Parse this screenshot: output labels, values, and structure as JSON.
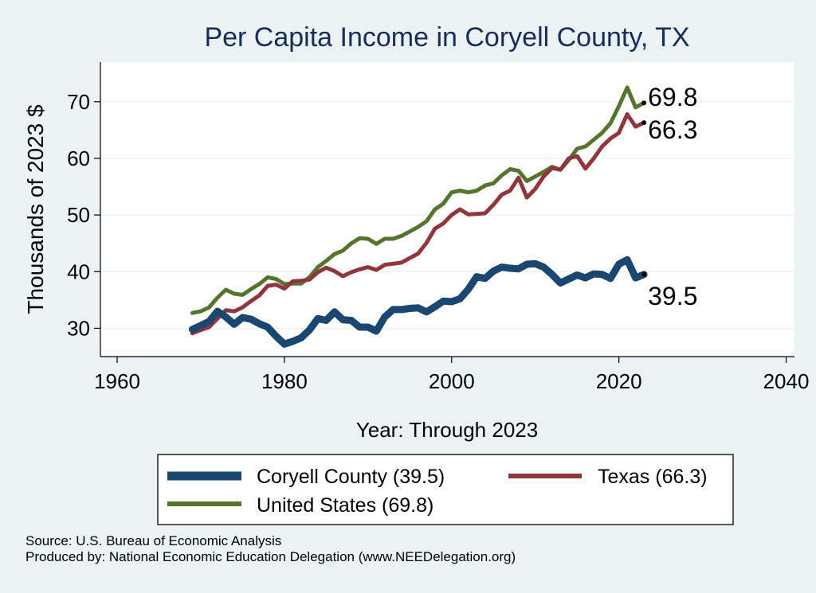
{
  "chart_data": {
    "type": "line",
    "title": "Per Capita Income in Coryell County, TX",
    "xlabel": "Year: Through 2023",
    "ylabel": "Thousands of 2023 $",
    "xlim": [
      1958,
      2041
    ],
    "ylim": [
      25,
      77
    ],
    "x_ticks": [
      1960,
      1980,
      2000,
      2020,
      2040
    ],
    "y_ticks": [
      30,
      40,
      50,
      60,
      70
    ],
    "grid": "horizontal",
    "years": [
      1969,
      1970,
      1971,
      1972,
      1973,
      1974,
      1975,
      1976,
      1977,
      1978,
      1979,
      1980,
      1981,
      1982,
      1983,
      1984,
      1985,
      1986,
      1987,
      1988,
      1989,
      1990,
      1991,
      1992,
      1993,
      1994,
      1995,
      1996,
      1997,
      1998,
      1999,
      2000,
      2001,
      2002,
      2003,
      2004,
      2005,
      2006,
      2007,
      2008,
      2009,
      2010,
      2011,
      2012,
      2013,
      2014,
      2015,
      2016,
      2017,
      2018,
      2019,
      2020,
      2021,
      2022,
      2023
    ],
    "series": [
      {
        "name": "Coryell County",
        "legend_label": "Coryell County (39.5)",
        "color": "#1a476f",
        "end_label": "39.5",
        "values": [
          29.8,
          30.5,
          31.2,
          33.0,
          32.0,
          30.7,
          31.9,
          31.6,
          30.8,
          30.2,
          28.6,
          27.2,
          27.7,
          28.3,
          29.7,
          31.7,
          31.4,
          32.9,
          31.5,
          31.4,
          30.2,
          30.2,
          29.5,
          32.0,
          33.3,
          33.3,
          33.5,
          33.6,
          32.9,
          33.8,
          34.8,
          34.7,
          35.2,
          36.9,
          39.1,
          38.8,
          40.1,
          40.8,
          40.6,
          40.5,
          41.3,
          41.4,
          40.8,
          39.5,
          38.0,
          38.7,
          39.4,
          38.9,
          39.6,
          39.5,
          38.8,
          41.3,
          42.1,
          38.9,
          39.5
        ]
      },
      {
        "name": "Texas",
        "legend_label": "Texas (66.3)",
        "color": "#90353b",
        "end_label": "66.3",
        "values": [
          29.1,
          29.7,
          30.2,
          31.7,
          33.2,
          33.0,
          33.7,
          34.8,
          35.8,
          37.5,
          37.7,
          37.0,
          38.3,
          38.4,
          38.6,
          39.9,
          40.7,
          40.1,
          39.2,
          39.9,
          40.4,
          40.8,
          40.3,
          41.2,
          41.4,
          41.6,
          42.4,
          43.2,
          45.1,
          47.6,
          48.5,
          50.0,
          51.0,
          50.1,
          50.2,
          50.3,
          51.8,
          53.6,
          54.3,
          56.6,
          53.1,
          54.6,
          56.8,
          58.3,
          58.0,
          60.0,
          60.4,
          58.2,
          60.0,
          62.1,
          63.5,
          64.5,
          67.8,
          65.6,
          66.3
        ]
      },
      {
        "name": "United States",
        "legend_label": "United States (69.8)",
        "color": "#55752f",
        "end_label": "69.8",
        "values": [
          32.7,
          33.0,
          33.7,
          35.4,
          36.8,
          36.1,
          35.9,
          36.9,
          37.8,
          39.0,
          38.7,
          37.8,
          37.9,
          37.9,
          39.0,
          40.8,
          41.9,
          43.1,
          43.7,
          45.0,
          45.9,
          45.8,
          44.9,
          45.8,
          45.8,
          46.3,
          47.1,
          47.9,
          48.9,
          51.0,
          52.0,
          54.0,
          54.3,
          54.0,
          54.3,
          55.2,
          55.6,
          57.0,
          58.1,
          57.8,
          56.0,
          56.8,
          57.6,
          58.5,
          58.0,
          59.7,
          61.7,
          62.1,
          63.3,
          64.5,
          66.2,
          69.2,
          72.5,
          69.0,
          69.8
        ]
      }
    ],
    "legend": {
      "position": "bottom",
      "order": [
        "Coryell County (39.5)",
        "Texas (66.3)",
        "United States (69.8)"
      ]
    },
    "source": "Source: U.S. Bureau of Economic Analysis",
    "produced_by": "Produced by: National Economic Education Delegation (www.NEEDelegation.org)"
  }
}
